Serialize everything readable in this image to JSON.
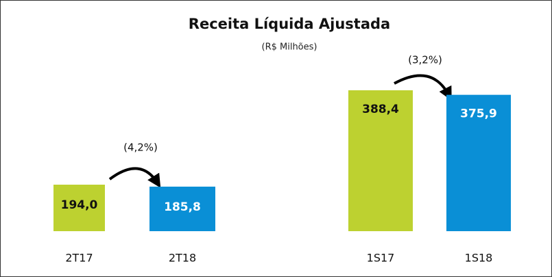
{
  "title": "Receita Líquida Ajustada",
  "subtitle": "(R$ Milhões)",
  "chart_data": [
    {
      "type": "bar",
      "categories": [
        "2T17",
        "2T18"
      ],
      "values": [
        194.0,
        185.8
      ],
      "value_labels": [
        "194,0",
        "185,8"
      ],
      "colors": [
        "#bdd130",
        "#0a8fd6"
      ],
      "annotation": "(4,2%)"
    },
    {
      "type": "bar",
      "categories": [
        "1S17",
        "1S18"
      ],
      "values": [
        388.4,
        375.9
      ],
      "value_labels": [
        "388,4",
        "375,9"
      ],
      "colors": [
        "#bdd130",
        "#0a8fd6"
      ],
      "annotation": "(3,2%)"
    }
  ]
}
